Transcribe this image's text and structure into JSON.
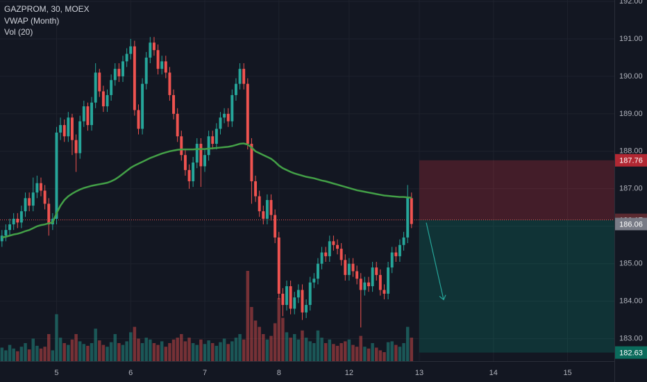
{
  "chart_data": {
    "type": "candlestick",
    "legend": [
      "GAZPROM, 30, MOEX",
      "VWAP (Month)",
      "Vol (20)"
    ],
    "xlim": [
      -0.5,
      157
    ],
    "xticks": [
      {
        "value": 14,
        "label": "5"
      },
      {
        "value": 33,
        "label": "6"
      },
      {
        "value": 52,
        "label": "7"
      },
      {
        "value": 71,
        "label": "8"
      },
      {
        "value": 89,
        "label": "12"
      },
      {
        "value": 107,
        "label": "13"
      },
      {
        "value": 126,
        "label": "14"
      },
      {
        "value": 145,
        "label": "15"
      }
    ],
    "ylim": [
      182.4,
      192.0
    ],
    "yticks": [
      {
        "value": 183,
        "label": "183.00"
      },
      {
        "value": 184,
        "label": "184.00"
      },
      {
        "value": 185,
        "label": "185.00"
      },
      {
        "value": 186,
        "label": "186.00"
      },
      {
        "value": 187,
        "label": "187.00"
      },
      {
        "value": 188,
        "label": "188.00"
      },
      {
        "value": 189,
        "label": "189.00"
      },
      {
        "value": 190,
        "label": "190.00"
      },
      {
        "value": 191,
        "label": "191.00"
      },
      {
        "value": 192,
        "label": "192.00"
      }
    ],
    "grid": true,
    "up_color": "#26a69a",
    "down_color": "#ef5350",
    "vwap_color": "#43a047",
    "open": [
      185.6,
      185.75,
      185.9,
      186.05,
      186.2,
      186.1,
      186.4,
      186.75,
      186.55,
      186.9,
      187.15,
      186.95,
      186.6,
      186.05,
      186.2,
      188.5,
      188.7,
      188.4,
      188.9,
      188.3,
      187.95,
      188.8,
      189.2,
      188.7,
      189.3,
      190.1,
      189.6,
      189.2,
      189.5,
      189.9,
      190.2,
      190.0,
      190.4,
      190.6,
      190.8,
      189.1,
      188.6,
      189.8,
      190.5,
      190.9,
      190.7,
      190.2,
      190.4,
      190.1,
      189.5,
      189.0,
      188.4,
      187.9,
      187.5,
      187.2,
      187.7,
      188.2,
      187.6,
      187.9,
      188.4,
      188.2,
      188.6,
      188.9,
      189.0,
      188.8,
      189.5,
      189.8,
      190.2,
      189.8,
      188.2,
      187.2,
      186.8,
      186.4,
      186.2,
      186.7,
      186.3,
      185.7,
      184.2,
      183.9,
      184.4,
      183.8,
      184.1,
      184.3,
      183.7,
      183.9,
      184.5,
      184.6,
      185.0,
      185.3,
      185.2,
      185.6,
      185.5,
      185.4,
      185.1,
      184.7,
      185.0,
      184.8,
      184.6,
      184.3,
      184.5,
      184.4,
      184.9,
      184.7,
      184.3,
      184.2,
      184.9,
      185.3,
      185.2,
      185.5,
      185.7,
      186.75
    ],
    "high": [
      185.9,
      186.05,
      186.2,
      186.35,
      186.35,
      186.55,
      186.9,
      186.9,
      187.3,
      187.35,
      187.3,
      187.1,
      186.75,
      186.35,
      188.65,
      188.9,
      188.85,
      189.05,
      189.0,
      188.45,
      188.95,
      189.35,
      189.3,
      189.45,
      190.35,
      190.2,
      189.75,
      189.65,
      190.05,
      190.35,
      190.35,
      190.55,
      190.75,
      191.0,
      190.95,
      189.25,
      189.95,
      190.65,
      191.05,
      191.05,
      190.85,
      190.55,
      190.55,
      190.25,
      189.65,
      189.15,
      188.55,
      188.05,
      187.65,
      187.85,
      188.35,
      188.35,
      188.05,
      188.55,
      188.55,
      188.75,
      189.05,
      189.15,
      189.15,
      189.65,
      189.95,
      190.35,
      190.35,
      189.95,
      188.35,
      187.35,
      186.95,
      186.55,
      186.85,
      186.85,
      186.45,
      185.85,
      184.35,
      184.55,
      184.55,
      184.25,
      184.45,
      184.45,
      184.05,
      184.65,
      184.75,
      185.15,
      185.45,
      185.45,
      185.75,
      185.75,
      185.65,
      185.55,
      185.25,
      185.15,
      185.15,
      184.95,
      184.75,
      184.65,
      184.65,
      185.05,
      185.05,
      184.85,
      184.45,
      185.05,
      185.45,
      185.45,
      185.65,
      185.85,
      187.1,
      186.9
    ],
    "low": [
      185.45,
      185.6,
      185.75,
      185.9,
      185.95,
      185.95,
      186.25,
      186.4,
      186.4,
      186.75,
      186.8,
      186.45,
      185.75,
      185.9,
      186.05,
      188.3,
      188.25,
      188.25,
      187.9,
      187.45,
      187.8,
      188.65,
      188.55,
      188.55,
      189.15,
      189.45,
      189.05,
      189.05,
      189.35,
      189.75,
      189.85,
      189.85,
      190.25,
      190.45,
      188.95,
      188.45,
      188.45,
      189.65,
      190.35,
      190.55,
      190.05,
      190.05,
      189.95,
      189.35,
      188.85,
      188.25,
      187.75,
      187.35,
      187.0,
      187.05,
      187.55,
      187.05,
      187.45,
      187.75,
      188.05,
      188.05,
      188.45,
      188.75,
      188.65,
      188.65,
      189.35,
      189.65,
      189.65,
      188.05,
      186.6,
      186.65,
      186.25,
      186.05,
      186.05,
      186.15,
      185.55,
      184.05,
      183.6,
      183.75,
      183.65,
      183.65,
      183.95,
      183.5,
      183.55,
      183.75,
      184.35,
      184.45,
      184.85,
      185.05,
      185.05,
      185.35,
      185.25,
      184.95,
      184.55,
      184.55,
      184.65,
      184.45,
      183.3,
      184.15,
      184.25,
      184.25,
      184.55,
      184.15,
      184.05,
      184.05,
      184.75,
      185.05,
      185.05,
      185.35,
      185.55,
      185.95
    ],
    "close": [
      185.75,
      185.9,
      186.05,
      186.2,
      186.1,
      186.4,
      186.75,
      186.55,
      186.9,
      187.15,
      186.95,
      186.6,
      186.05,
      186.2,
      188.5,
      188.7,
      188.4,
      188.9,
      188.3,
      187.95,
      188.8,
      189.2,
      188.7,
      189.3,
      190.1,
      189.6,
      189.2,
      189.5,
      189.9,
      190.2,
      190.0,
      190.4,
      190.6,
      190.8,
      189.1,
      188.6,
      189.8,
      190.5,
      190.9,
      190.7,
      190.2,
      190.4,
      190.1,
      189.5,
      189.0,
      188.4,
      187.9,
      187.5,
      187.2,
      187.7,
      188.2,
      187.6,
      187.9,
      188.4,
      188.2,
      188.6,
      188.9,
      189.0,
      188.8,
      189.5,
      189.8,
      190.2,
      189.8,
      188.2,
      187.2,
      186.8,
      186.4,
      186.2,
      186.7,
      186.3,
      185.7,
      184.2,
      183.9,
      184.4,
      183.8,
      184.1,
      184.3,
      183.7,
      183.9,
      184.5,
      184.6,
      185.0,
      185.3,
      185.2,
      185.6,
      185.5,
      185.4,
      185.1,
      184.7,
      185.0,
      184.8,
      184.6,
      184.3,
      184.5,
      184.4,
      184.9,
      184.7,
      184.3,
      184.2,
      184.9,
      185.3,
      185.2,
      185.5,
      185.7,
      186.75,
      186.06
    ],
    "volume": [
      150,
      120,
      180,
      140,
      110,
      160,
      200,
      130,
      250,
      170,
      140,
      160,
      300,
      120,
      520,
      260,
      200,
      180,
      240,
      300,
      220,
      190,
      170,
      200,
      360,
      230,
      180,
      160,
      210,
      300,
      200,
      180,
      220,
      320,
      380,
      250,
      200,
      260,
      240,
      200,
      180,
      220,
      160,
      200,
      240,
      260,
      300,
      220,
      260,
      200,
      180,
      240,
      190,
      230,
      200,
      170,
      210,
      250,
      190,
      220,
      260,
      300,
      240,
      1000,
      600,
      450,
      380,
      300,
      240,
      280,
      420,
      700,
      480,
      320,
      260,
      300,
      240,
      340,
      260,
      220,
      200,
      340,
      260,
      200,
      240,
      190,
      170,
      200,
      220,
      240,
      180,
      160,
      280,
      160,
      140,
      200,
      150,
      120,
      100,
      210,
      220,
      180,
      160,
      200,
      380,
      260
    ],
    "vwap": [
      185.7,
      185.72,
      185.75,
      185.78,
      185.8,
      185.83,
      185.87,
      185.9,
      185.95,
      186.0,
      186.03,
      186.05,
      186.08,
      186.1,
      186.35,
      186.55,
      186.7,
      186.8,
      186.87,
      186.93,
      186.98,
      187.02,
      187.05,
      187.08,
      187.1,
      187.12,
      187.14,
      187.16,
      187.2,
      187.25,
      187.32,
      187.4,
      187.48,
      187.56,
      187.62,
      187.67,
      187.72,
      187.77,
      187.82,
      187.86,
      187.9,
      187.94,
      187.97,
      188.0,
      188.02,
      188.04,
      188.05,
      188.05,
      188.05,
      188.05,
      188.06,
      188.06,
      188.06,
      188.07,
      188.08,
      188.09,
      188.1,
      188.11,
      188.12,
      188.14,
      188.17,
      188.2,
      188.21,
      188.18,
      188.1,
      188.0,
      187.95,
      187.9,
      187.85,
      187.8,
      187.72,
      187.62,
      187.55,
      187.5,
      187.45,
      187.41,
      187.38,
      187.35,
      187.32,
      187.3,
      187.28,
      187.25,
      187.22,
      187.2,
      187.17,
      187.14,
      187.11,
      187.08,
      187.05,
      187.02,
      186.99,
      186.96,
      186.94,
      186.92,
      186.9,
      186.88,
      186.86,
      186.84,
      186.82,
      186.81,
      186.8,
      186.79,
      186.78,
      186.78,
      186.77,
      186.76
    ],
    "position": {
      "start": 107,
      "entry": 186.17,
      "stop": 187.76,
      "target": 182.63
    }
  }
}
